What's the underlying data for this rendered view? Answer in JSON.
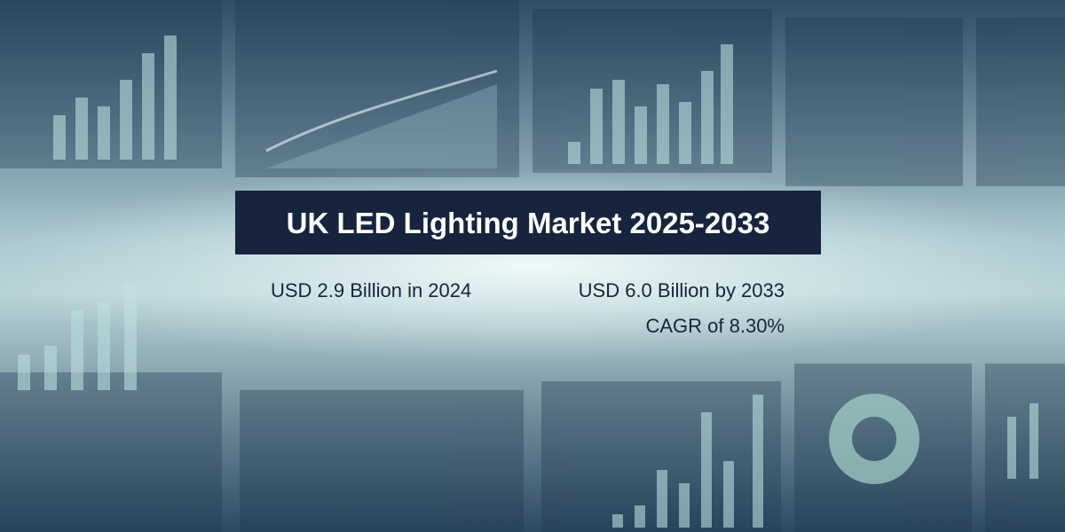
{
  "banner": {
    "title": "UK LED Lighting Market 2025-2033",
    "stats": [
      "USD 2.9 Billion in 2024",
      "USD 6.0 Billion by 2033",
      "CAGR of 8.30%"
    ]
  }
}
